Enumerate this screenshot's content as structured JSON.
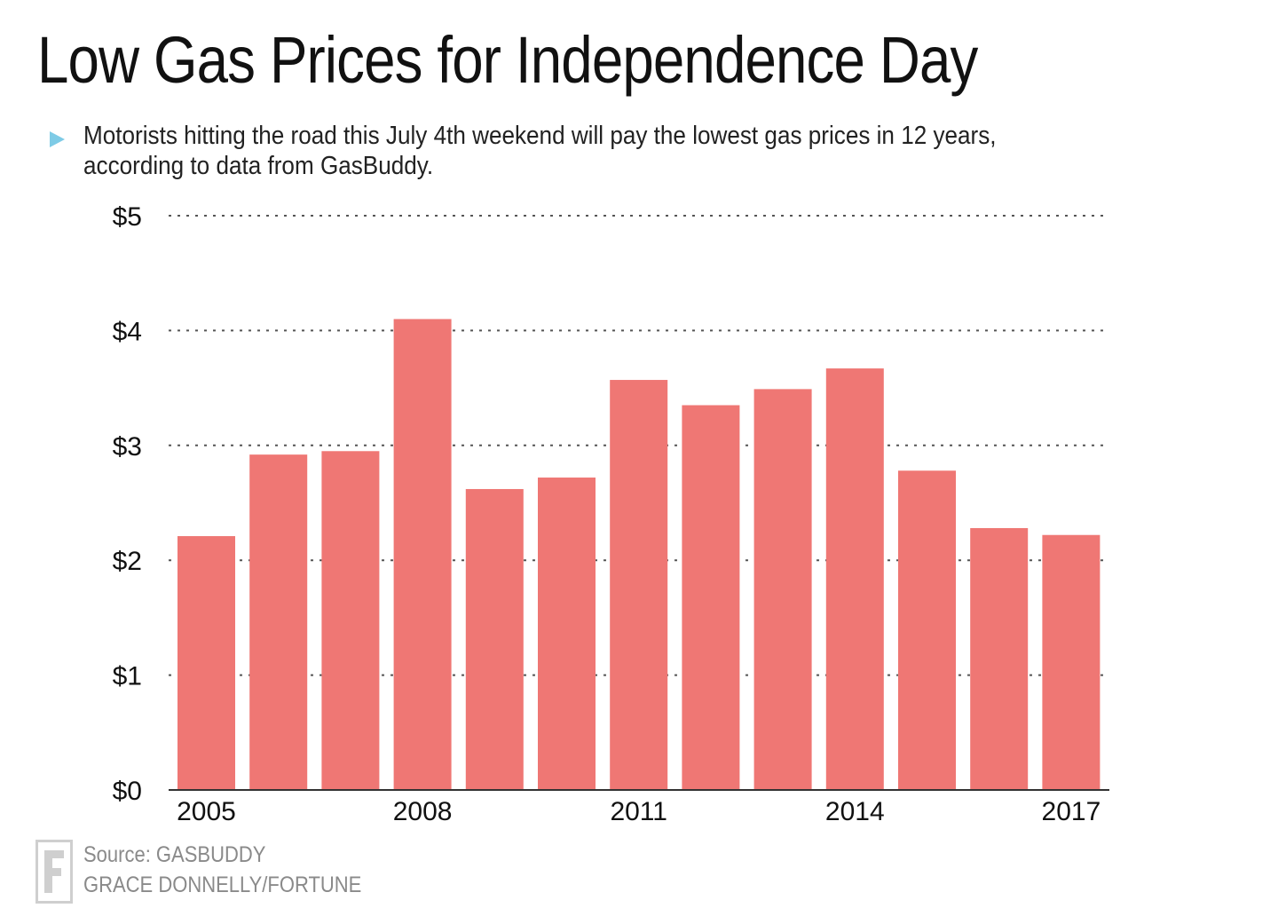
{
  "title": "Low Gas Prices for Independence Day",
  "subtitle": {
    "line1": "Motorists hitting the road this July 4th weekend will pay the lowest gas prices in 12 years,",
    "line2": "according to data from GasBuddy."
  },
  "footer": {
    "source": "Source: GASBUDDY",
    "credit": "GRACE DONNELLY/FORTUNE"
  },
  "colors": {
    "bar": "#ef7774",
    "grid": "#555555",
    "axis": "#333333",
    "bullet": "#7ecbe6",
    "footer": "#8a8a8a"
  },
  "chart_data": {
    "type": "bar",
    "categories": [
      "2005",
      "2006",
      "2007",
      "2008",
      "2009",
      "2010",
      "2011",
      "2012",
      "2013",
      "2014",
      "2015",
      "2016",
      "2017"
    ],
    "values": [
      2.21,
      2.92,
      2.95,
      4.1,
      2.62,
      2.72,
      3.57,
      3.35,
      3.49,
      3.67,
      2.78,
      2.28,
      2.22
    ],
    "visible_x_ticks": [
      "2005",
      "2008",
      "2011",
      "2014",
      "2017"
    ],
    "y_ticks": [
      0,
      1,
      2,
      3,
      4,
      5
    ],
    "y_tick_labels": [
      "$0",
      "$1",
      "$2",
      "$3",
      "$4",
      "$5"
    ],
    "ylim": [
      0,
      5
    ],
    "grid": true,
    "xlabel": "",
    "ylabel": ""
  }
}
